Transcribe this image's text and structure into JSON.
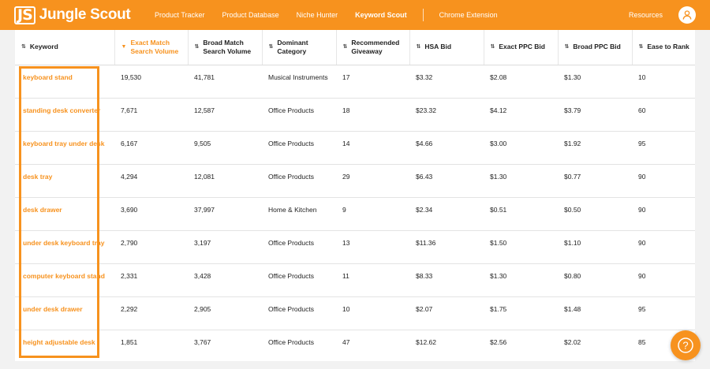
{
  "app": {
    "logo_mark": "JS",
    "logo_text": "Jungle Scout",
    "brand_color": "#f7921e"
  },
  "nav": {
    "items": [
      {
        "label": "Product Tracker",
        "active": false
      },
      {
        "label": "Product Database",
        "active": false
      },
      {
        "label": "Niche Hunter",
        "active": false
      },
      {
        "label": "Keyword Scout",
        "active": true
      }
    ],
    "chrome_extension": "Chrome Extension",
    "resources": "Resources",
    "user_icon": "user-icon"
  },
  "table": {
    "sorted_column": 1,
    "sort_icon": "⇅",
    "sorted_icon": "▼",
    "columns": [
      "Keyword",
      "Exact Match Search Volume",
      "Broad Match Search Volume",
      "Dominant Category",
      "Recommended Giveaway",
      "HSA Bid",
      "Exact PPC Bid",
      "Broad PPC Bid",
      "Ease to Rank"
    ],
    "rows": [
      [
        "keyboard stand",
        "19,530",
        "41,781",
        "Musical Instruments",
        "17",
        "$3.32",
        "$2.08",
        "$1.30",
        "10"
      ],
      [
        "standing desk converter",
        "7,671",
        "12,587",
        "Office Products",
        "18",
        "$23.32",
        "$4.12",
        "$3.79",
        "60"
      ],
      [
        "keyboard tray under desk",
        "6,167",
        "9,505",
        "Office Products",
        "14",
        "$4.66",
        "$3.00",
        "$1.92",
        "95"
      ],
      [
        "desk tray",
        "4,294",
        "12,081",
        "Office Products",
        "29",
        "$6.43",
        "$1.30",
        "$0.77",
        "90"
      ],
      [
        "desk drawer",
        "3,690",
        "37,997",
        "Home & Kitchen",
        "9",
        "$2.34",
        "$0.51",
        "$0.50",
        "90"
      ],
      [
        "under desk keyboard tray",
        "2,790",
        "3,197",
        "Office Products",
        "13",
        "$11.36",
        "$1.50",
        "$1.10",
        "90"
      ],
      [
        "computer keyboard stand",
        "2,331",
        "3,428",
        "Office Products",
        "11",
        "$8.33",
        "$1.30",
        "$0.80",
        "90"
      ],
      [
        "under desk drawer",
        "2,292",
        "2,905",
        "Office Products",
        "10",
        "$2.07",
        "$1.75",
        "$1.48",
        "95"
      ],
      [
        "height adjustable desk",
        "1,851",
        "3,767",
        "Office Products",
        "47",
        "$12.62",
        "$2.56",
        "$2.02",
        "85"
      ]
    ]
  },
  "help": {
    "icon": "question-mark-icon",
    "glyph": "?"
  }
}
